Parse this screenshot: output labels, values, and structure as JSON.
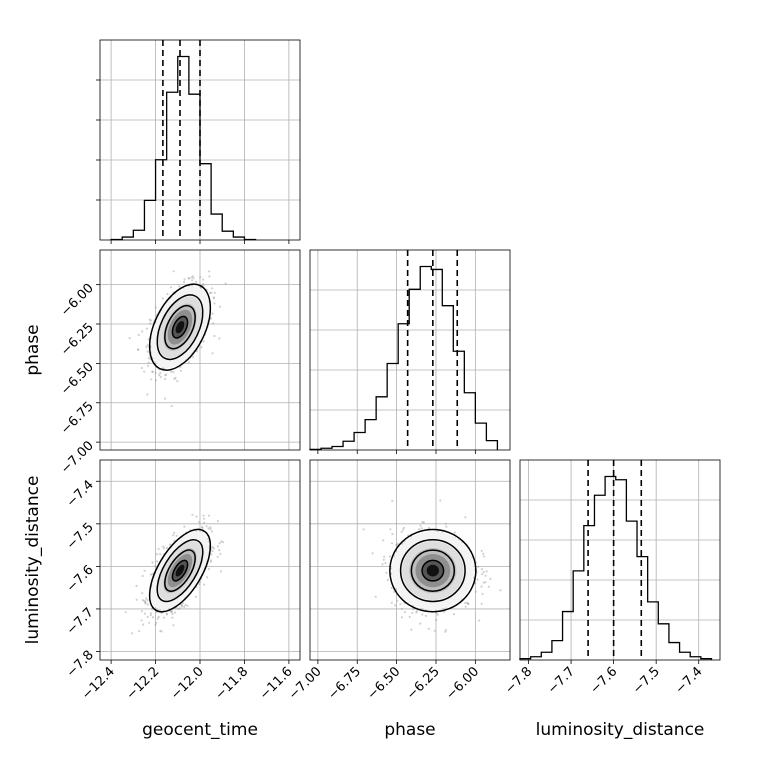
{
  "chart_data": {
    "type": "corner",
    "parameters": [
      {
        "name": "geocent_time",
        "label": "geocent_time",
        "range": [
          -12.45,
          -11.55
        ],
        "ticks": [
          -12.4,
          -12.2,
          -12.0,
          -11.8,
          -11.6
        ],
        "tick_labels": [
          "−12.4",
          "−12.2",
          "−12.0",
          "−11.8",
          "−11.6"
        ],
        "quantiles": [
          -12.167,
          -12.09,
          -12.0
        ],
        "hist_bins": [
          -12.4,
          -12.35,
          -12.3,
          -12.25,
          -12.2,
          -12.15,
          -12.1,
          -12.05,
          -12.0,
          -11.95,
          -11.9,
          -11.85,
          -11.8,
          -11.75
        ],
        "hist_counts": [
          0.1,
          0.6,
          2.0,
          8.1,
          16.4,
          30.2,
          37.5,
          29.8,
          15.6,
          5.3,
          1.8,
          0.6,
          0.1
        ]
      },
      {
        "name": "phase",
        "label": "phase",
        "range": [
          -7.05,
          -5.78
        ],
        "ticks": [
          -7.0,
          -6.75,
          -6.5,
          -6.25,
          -6.0
        ],
        "tick_labels": [
          "−7.00",
          "−6.75",
          "−6.50",
          "−6.25",
          "−6.00"
        ],
        "quantiles": [
          -6.43,
          -6.27,
          -6.115
        ],
        "hist_bins": [
          -7.05,
          -6.98,
          -6.91,
          -6.84,
          -6.77,
          -6.7,
          -6.63,
          -6.56,
          -6.49,
          -6.42,
          -6.35,
          -6.28,
          -6.21,
          -6.14,
          -6.07,
          -6.0,
          -5.93,
          -5.86
        ],
        "hist_counts": [
          0.1,
          0.3,
          0.6,
          1.5,
          3.0,
          5.2,
          9.1,
          14.8,
          21.6,
          27.5,
          31.4,
          30.9,
          24.7,
          16.9,
          9.8,
          4.6,
          1.6
        ]
      },
      {
        "name": "luminosity_distance",
        "label": "luminosity_distance",
        "range": [
          -7.82,
          -7.35
        ],
        "ticks": [
          -7.8,
          -7.7,
          -7.6,
          -7.5,
          -7.4
        ],
        "tick_labels": [
          "−7.8",
          "−7.7",
          "−7.6",
          "−7.5",
          "−7.4"
        ],
        "quantiles": [
          -7.66,
          -7.6,
          -7.535
        ],
        "hist_bins": [
          -7.82,
          -7.795,
          -7.77,
          -7.745,
          -7.72,
          -7.695,
          -7.67,
          -7.645,
          -7.62,
          -7.595,
          -7.57,
          -7.545,
          -7.52,
          -7.495,
          -7.47,
          -7.445,
          -7.42,
          -7.395,
          -7.37
        ],
        "hist_counts": [
          0.2,
          0.5,
          1.2,
          3.0,
          7.5,
          13.8,
          20.8,
          25.5,
          28.4,
          27.9,
          21.5,
          16.0,
          9.0,
          5.6,
          2.7,
          1.2,
          0.5,
          0.2
        ]
      }
    ],
    "pairs": [
      {
        "x": "geocent_time",
        "y": "phase",
        "center": [
          -12.09,
          -6.27
        ],
        "sigma": [
          0.065,
          0.13
        ],
        "correlation": 0.45
      },
      {
        "x": "geocent_time",
        "y": "luminosity_distance",
        "center": [
          -12.09,
          -7.61
        ],
        "sigma": [
          0.065,
          0.046
        ],
        "correlation": 0.6
      },
      {
        "x": "phase",
        "y": "luminosity_distance",
        "center": [
          -6.27,
          -7.61
        ],
        "sigma": [
          0.13,
          0.046
        ],
        "correlation": 0.0
      }
    ],
    "grid": true,
    "contour_levels": [
      "0.5 sigma",
      "1 sigma",
      "1.5 sigma",
      "2 sigma"
    ]
  }
}
